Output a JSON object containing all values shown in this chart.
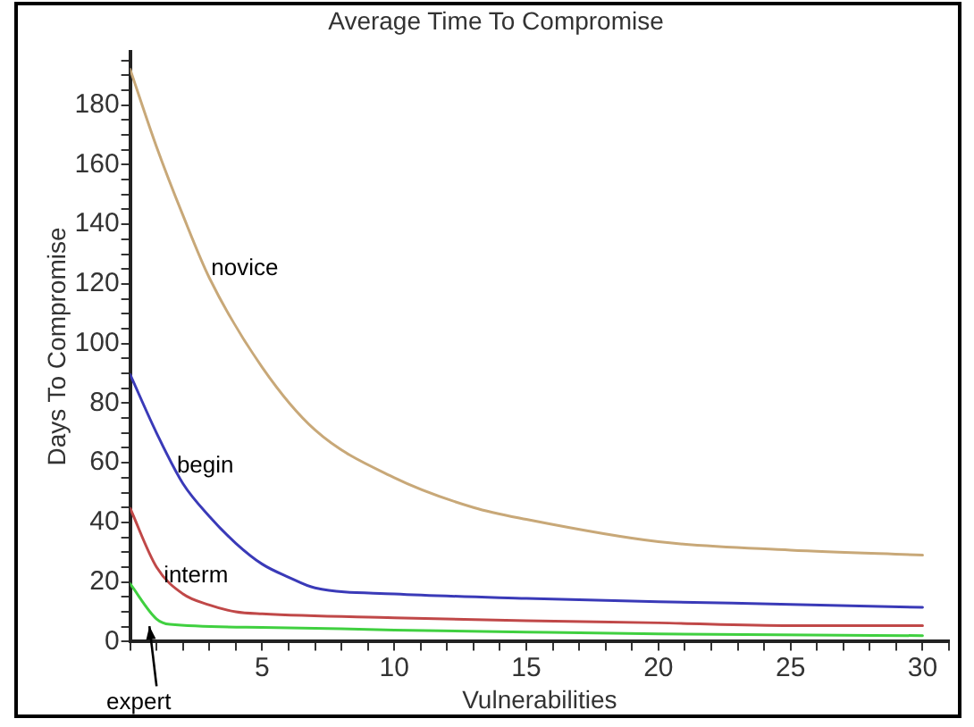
{
  "chart_data": {
    "type": "line",
    "title": "Average Time To Compromise",
    "xlabel": "Vulnerabilities",
    "ylabel": "Days To Compromise",
    "xlim": [
      0,
      31
    ],
    "ylim": [
      0,
      198
    ],
    "xticks": [
      {
        "value": 0,
        "label": null
      },
      {
        "value": 1,
        "label": null
      },
      {
        "value": 2,
        "label": null
      },
      {
        "value": 3,
        "label": null
      },
      {
        "value": 4,
        "label": null
      },
      5,
      {
        "value": 6,
        "label": null
      },
      {
        "value": 7,
        "label": null
      },
      {
        "value": 8,
        "label": null
      },
      {
        "value": 9,
        "label": null
      },
      10,
      {
        "value": 11,
        "label": null
      },
      {
        "value": 12,
        "label": null
      },
      {
        "value": 13,
        "label": null
      },
      {
        "value": 14,
        "label": null
      },
      15,
      {
        "value": 16,
        "label": null
      },
      {
        "value": 17,
        "label": null
      },
      {
        "value": 18,
        "label": null
      },
      {
        "value": 19,
        "label": null
      },
      20,
      {
        "value": 21,
        "label": null
      },
      {
        "value": 22,
        "label": null
      },
      {
        "value": 23,
        "label": null
      },
      {
        "value": 24,
        "label": null
      },
      25,
      {
        "value": 26,
        "label": null
      },
      {
        "value": 27,
        "label": null
      },
      {
        "value": 28,
        "label": null
      },
      {
        "value": 29,
        "label": null
      },
      30,
      {
        "value": 31,
        "label": null
      }
    ],
    "yticks": [
      0,
      {
        "value": 5,
        "label": null
      },
      {
        "value": 10,
        "label": null
      },
      {
        "value": 15,
        "label": null
      },
      20,
      {
        "value": 25,
        "label": null
      },
      {
        "value": 30,
        "label": null
      },
      {
        "value": 35,
        "label": null
      },
      40,
      {
        "value": 45,
        "label": null
      },
      {
        "value": 50,
        "label": null
      },
      {
        "value": 55,
        "label": null
      },
      60,
      {
        "value": 65,
        "label": null
      },
      {
        "value": 70,
        "label": null
      },
      {
        "value": 75,
        "label": null
      },
      80,
      {
        "value": 85,
        "label": null
      },
      {
        "value": 90,
        "label": null
      },
      {
        "value": 95,
        "label": null
      },
      100,
      {
        "value": 105,
        "label": null
      },
      {
        "value": 110,
        "label": null
      },
      {
        "value": 115,
        "label": null
      },
      120,
      {
        "value": 125,
        "label": null
      },
      {
        "value": 130,
        "label": null
      },
      {
        "value": 135,
        "label": null
      },
      140,
      {
        "value": 145,
        "label": null
      },
      {
        "value": 150,
        "label": null
      },
      {
        "value": 155,
        "label": null
      },
      160,
      {
        "value": 165,
        "label": null
      },
      {
        "value": 170,
        "label": null
      },
      {
        "value": 175,
        "label": null
      },
      180,
      {
        "value": 185,
        "label": null
      },
      {
        "value": 190,
        "label": null
      },
      {
        "value": 195,
        "label": null
      }
    ],
    "grid": false,
    "legend": false,
    "marker": "none",
    "line_style": "solid",
    "series": [
      {
        "color": "#c8a878",
        "x": [
          0,
          1,
          2,
          3,
          5,
          7,
          10,
          13,
          15,
          20,
          25,
          30
        ],
        "values": [
          192,
          166,
          143,
          122,
          92,
          71,
          55,
          45,
          41,
          33.5,
          30.7,
          29
        ]
      },
      {
        "color": "#3a3ab8",
        "x": [
          0,
          1,
          2,
          3,
          4,
          5,
          6,
          7,
          10,
          15,
          20,
          25,
          30
        ],
        "values": [
          89.6,
          70,
          53,
          42,
          33,
          26,
          21.6,
          18,
          16,
          14.5,
          13.4,
          12.5,
          11.5
        ]
      },
      {
        "color": "#c04848",
        "x": [
          0,
          1,
          2,
          3,
          4,
          5,
          10,
          15,
          20,
          25,
          30
        ],
        "values": [
          44.7,
          25,
          16,
          12.3,
          10,
          9.3,
          8,
          7,
          6.3,
          5.4,
          5.4
        ]
      },
      {
        "color": "#40d040",
        "x": [
          0,
          1,
          1.5,
          5,
          10,
          15,
          20,
          30
        ],
        "values": [
          19.4,
          7.6,
          5.8,
          4.8,
          3.9,
          3.2,
          2.6,
          2
        ]
      }
    ],
    "annotations": [
      {
        "text": "novice",
        "x": 3,
        "y": 125
      },
      {
        "text": "begin",
        "x": 1.7,
        "y": 59
      },
      {
        "text": "interm",
        "x": 1.2,
        "y": 22
      },
      {
        "text": "expert",
        "x": 1,
        "y": 7.6
      }
    ]
  }
}
